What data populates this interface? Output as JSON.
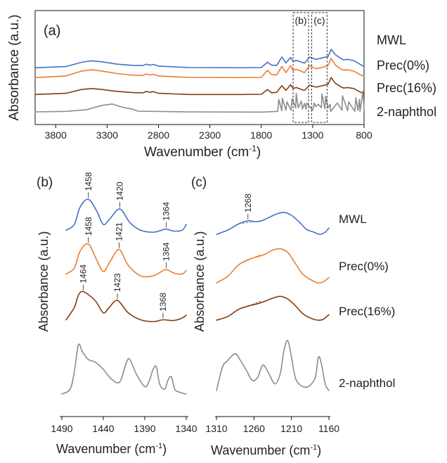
{
  "colors": {
    "MWL": "#4472c4",
    "Prec(0%)": "#ed7d31",
    "Prec(16%)": "#843c0c",
    "2-naphthol": "#8c8c8c"
  },
  "chart_data": [
    {
      "panel": "(a)",
      "type": "line",
      "xlabel": "Wavenumber (cm",
      "xlabel_sup": "-1",
      "xlabel_end": ")",
      "ylabel": "Absorbance (a.u.)",
      "xlim": [
        4000,
        800
      ],
      "x_reversed": true,
      "xticks": [
        3800,
        3300,
        2800,
        2300,
        1800,
        1300,
        800
      ],
      "yticks_shown": false,
      "boxes": [
        {
          "label": "(b)",
          "x_range": [
            1490,
            1340
          ]
        },
        {
          "label": "(c)",
          "x_range": [
            1310,
            1160
          ]
        }
      ],
      "series": [
        {
          "name": "MWL",
          "x": [
            4000,
            3700,
            3550,
            3450,
            3350,
            3200,
            3050,
            2950,
            2920,
            2880,
            2850,
            2800,
            2500,
            2000,
            1800,
            1740,
            1700,
            1650,
            1600,
            1560,
            1515,
            1490,
            1460,
            1420,
            1380,
            1330,
            1270,
            1220,
            1150,
            1120,
            1080,
            1030,
            1000,
            960,
            900,
            850,
            800
          ],
          "y": [
            0.05,
            0.1,
            0.28,
            0.34,
            0.3,
            0.2,
            0.15,
            0.14,
            0.2,
            0.16,
            0.19,
            0.12,
            0.06,
            0.05,
            0.06,
            0.28,
            0.16,
            0.15,
            0.5,
            0.25,
            0.48,
            0.32,
            0.36,
            0.3,
            0.24,
            0.5,
            0.4,
            0.45,
            0.52,
            0.82,
            0.6,
            0.45,
            0.38,
            0.4,
            0.35,
            0.22,
            0.1
          ]
        },
        {
          "name": "Prec(0%)",
          "x": [
            4000,
            3700,
            3550,
            3450,
            3350,
            3200,
            3050,
            2950,
            2920,
            2880,
            2850,
            2800,
            2500,
            2000,
            1800,
            1740,
            1700,
            1650,
            1600,
            1560,
            1515,
            1490,
            1460,
            1420,
            1380,
            1330,
            1270,
            1220,
            1150,
            1120,
            1080,
            1030,
            1000,
            960,
            900,
            850,
            800
          ],
          "y": [
            0.05,
            0.12,
            0.32,
            0.38,
            0.32,
            0.22,
            0.15,
            0.14,
            0.2,
            0.16,
            0.19,
            0.12,
            0.06,
            0.05,
            0.06,
            0.36,
            0.18,
            0.16,
            0.52,
            0.26,
            0.55,
            0.35,
            0.4,
            0.33,
            0.26,
            0.55,
            0.42,
            0.46,
            0.55,
            0.85,
            0.58,
            0.42,
            0.36,
            0.38,
            0.32,
            0.2,
            0.1
          ]
        },
        {
          "name": "Prec(16%)",
          "x": [
            4000,
            3700,
            3550,
            3450,
            3350,
            3200,
            3050,
            2950,
            2920,
            2880,
            2850,
            2800,
            2500,
            2000,
            1800,
            1740,
            1700,
            1650,
            1600,
            1560,
            1515,
            1490,
            1460,
            1420,
            1380,
            1330,
            1270,
            1220,
            1150,
            1120,
            1080,
            1030,
            1000,
            960,
            900,
            850,
            800
          ],
          "y": [
            0.05,
            0.1,
            0.26,
            0.3,
            0.26,
            0.18,
            0.13,
            0.12,
            0.18,
            0.14,
            0.17,
            0.1,
            0.05,
            0.05,
            0.06,
            0.26,
            0.12,
            0.14,
            0.42,
            0.22,
            0.46,
            0.3,
            0.34,
            0.28,
            0.22,
            0.44,
            0.36,
            0.4,
            0.48,
            0.76,
            0.52,
            0.38,
            0.32,
            0.34,
            0.3,
            0.18,
            0.08
          ]
        },
        {
          "name": "2-naphthol",
          "x": [
            4000,
            3700,
            3500,
            3350,
            3250,
            3150,
            3050,
            3000,
            2500,
            1800,
            1640,
            1630,
            1600,
            1595,
            1560,
            1550,
            1510,
            1500,
            1465,
            1460,
            1440,
            1410,
            1400,
            1380,
            1365,
            1360,
            1300,
            1285,
            1270,
            1245,
            1215,
            1210,
            1180,
            1175,
            1150,
            1130,
            1125,
            1060,
            1015,
            1010,
            960,
            950,
            890,
            880,
            860,
            845,
            840,
            810,
            800
          ],
          "y": [
            0.03,
            0.05,
            0.12,
            0.3,
            0.36,
            0.22,
            0.14,
            0.06,
            0.03,
            0.02,
            0.05,
            0.55,
            0.08,
            0.6,
            0.1,
            0.45,
            0.1,
            0.58,
            0.2,
            0.8,
            0.2,
            0.48,
            0.15,
            0.38,
            0.14,
            0.4,
            0.1,
            0.4,
            0.25,
            0.35,
            0.2,
            0.78,
            0.15,
            0.68,
            0.2,
            0.35,
            0.05,
            0.4,
            0.1,
            0.7,
            0.08,
            0.45,
            0.05,
            0.62,
            0.1,
            0.55,
            0.05,
            0.9,
            0.1
          ]
        }
      ]
    },
    {
      "panel": "(b)",
      "type": "line",
      "xlabel": "Wavenumber (cm",
      "xlabel_sup": "-1",
      "xlabel_end": ")",
      "ylabel": "Absorbance (a.u.)",
      "xlim": [
        1490,
        1340
      ],
      "x_reversed": true,
      "xticks": [
        1490,
        1440,
        1390,
        1340
      ],
      "yticks_shown": false,
      "series": [
        {
          "name": "MWL",
          "x": [
            1485,
            1475,
            1468,
            1458,
            1448,
            1440,
            1432,
            1420,
            1408,
            1395,
            1380,
            1370,
            1364,
            1355,
            1345,
            1340
          ],
          "y": [
            0.05,
            0.2,
            0.65,
            0.85,
            0.55,
            0.2,
            0.35,
            0.6,
            0.25,
            0.05,
            0.0,
            0.05,
            0.08,
            0.03,
            0.05,
            0.2
          ]
        },
        {
          "name": "Prec(0%)",
          "x": [
            1485,
            1475,
            1468,
            1458,
            1448,
            1440,
            1432,
            1421,
            1410,
            1395,
            1380,
            1370,
            1364,
            1355,
            1345,
            1340
          ],
          "y": [
            0.05,
            0.22,
            0.7,
            0.9,
            0.45,
            0.12,
            0.4,
            0.75,
            0.3,
            0.0,
            0.0,
            0.12,
            0.18,
            0.08,
            0.05,
            0.15
          ]
        },
        {
          "name": "Prec(16%)",
          "x": [
            1485,
            1475,
            1470,
            1464,
            1450,
            1440,
            1433,
            1423,
            1410,
            1395,
            1380,
            1368,
            1355,
            1345,
            1340
          ],
          "y": [
            0.05,
            0.4,
            0.75,
            0.85,
            0.6,
            0.25,
            0.4,
            0.6,
            0.25,
            0.05,
            0.0,
            0.05,
            0.03,
            0.1,
            0.18
          ]
        },
        {
          "name": "2-naphthol",
          "x": [
            1490,
            1480,
            1475,
            1470,
            1465,
            1458,
            1450,
            1440,
            1430,
            1420,
            1412,
            1408,
            1400,
            1390,
            1385,
            1380,
            1376,
            1372,
            1366,
            1362,
            1358,
            1354,
            1350,
            1345,
            1340
          ],
          "y": [
            0.0,
            0.1,
            0.45,
            1.0,
            0.85,
            0.7,
            0.65,
            0.5,
            0.3,
            0.25,
            0.65,
            0.7,
            0.4,
            0.15,
            0.25,
            0.5,
            0.55,
            0.2,
            0.1,
            0.28,
            0.35,
            0.1,
            0.05,
            0.02,
            0.0
          ]
        }
      ],
      "annotations": [
        {
          "series": "MWL",
          "labels": [
            "1458",
            "1420",
            "1364"
          ],
          "x": [
            1458,
            1420,
            1364
          ]
        },
        {
          "series": "Prec(0%)",
          "labels": [
            "1458",
            "1421",
            "1364"
          ],
          "x": [
            1458,
            1421,
            1364
          ]
        },
        {
          "series": "Prec(16%)",
          "labels": [
            "1464",
            "1423",
            "1368"
          ],
          "x": [
            1464,
            1423,
            1368
          ]
        }
      ]
    },
    {
      "panel": "(c)",
      "type": "line",
      "xlabel": "Wavenumber (cm",
      "xlabel_sup": "-1",
      "xlabel_end": ")",
      "ylabel": "Absorbance (a.u.)",
      "xlim": [
        1310,
        1160
      ],
      "x_reversed": true,
      "xticks": [
        1310,
        1260,
        1210,
        1160
      ],
      "yticks_shown": false,
      "series": [
        {
          "name": "MWL",
          "x": [
            1310,
            1295,
            1280,
            1268,
            1258,
            1250,
            1240,
            1230,
            1220,
            1210,
            1200,
            1190,
            1180,
            1172,
            1165,
            1160
          ],
          "y": [
            0.0,
            0.1,
            0.25,
            0.32,
            0.3,
            0.32,
            0.4,
            0.48,
            0.52,
            0.45,
            0.3,
            0.12,
            0.05,
            0.0,
            0.05,
            0.15
          ]
        },
        {
          "name": "Prec(0%)",
          "x": [
            1310,
            1295,
            1280,
            1265,
            1255,
            1245,
            1235,
            1225,
            1215,
            1205,
            1195,
            1185,
            1175,
            1168,
            1160
          ],
          "y": [
            0.0,
            0.15,
            0.42,
            0.55,
            0.6,
            0.66,
            0.75,
            0.78,
            0.7,
            0.45,
            0.2,
            0.08,
            0.0,
            0.02,
            0.12
          ]
        },
        {
          "name": "Prec(16%)",
          "x": [
            1310,
            1295,
            1280,
            1265,
            1255,
            1245,
            1235,
            1225,
            1215,
            1205,
            1195,
            1185,
            1175,
            1168,
            1160
          ],
          "y": [
            0.0,
            0.1,
            0.3,
            0.4,
            0.45,
            0.52,
            0.6,
            0.65,
            0.58,
            0.4,
            0.18,
            0.06,
            0.0,
            0.02,
            0.15
          ]
        },
        {
          "name": "2-naphthol",
          "x": [
            1310,
            1302,
            1295,
            1285,
            1278,
            1270,
            1262,
            1255,
            1248,
            1240,
            1232,
            1225,
            1220,
            1215,
            1210,
            1205,
            1200,
            1192,
            1185,
            1178,
            1174,
            1170,
            1165,
            1160
          ],
          "y": [
            0.0,
            0.35,
            0.45,
            0.55,
            0.45,
            0.3,
            0.15,
            0.2,
            0.38,
            0.25,
            0.1,
            0.25,
            0.6,
            0.75,
            0.5,
            0.2,
            0.1,
            0.05,
            0.08,
            0.2,
            0.5,
            0.4,
            0.1,
            0.0
          ]
        }
      ],
      "annotations": [
        {
          "series": "MWL",
          "labels": [
            "1268"
          ],
          "x": [
            1268
          ]
        }
      ]
    }
  ],
  "legend": [
    "MWL",
    "Prec(0%)",
    "Prec(16%)",
    "2-naphthol"
  ]
}
